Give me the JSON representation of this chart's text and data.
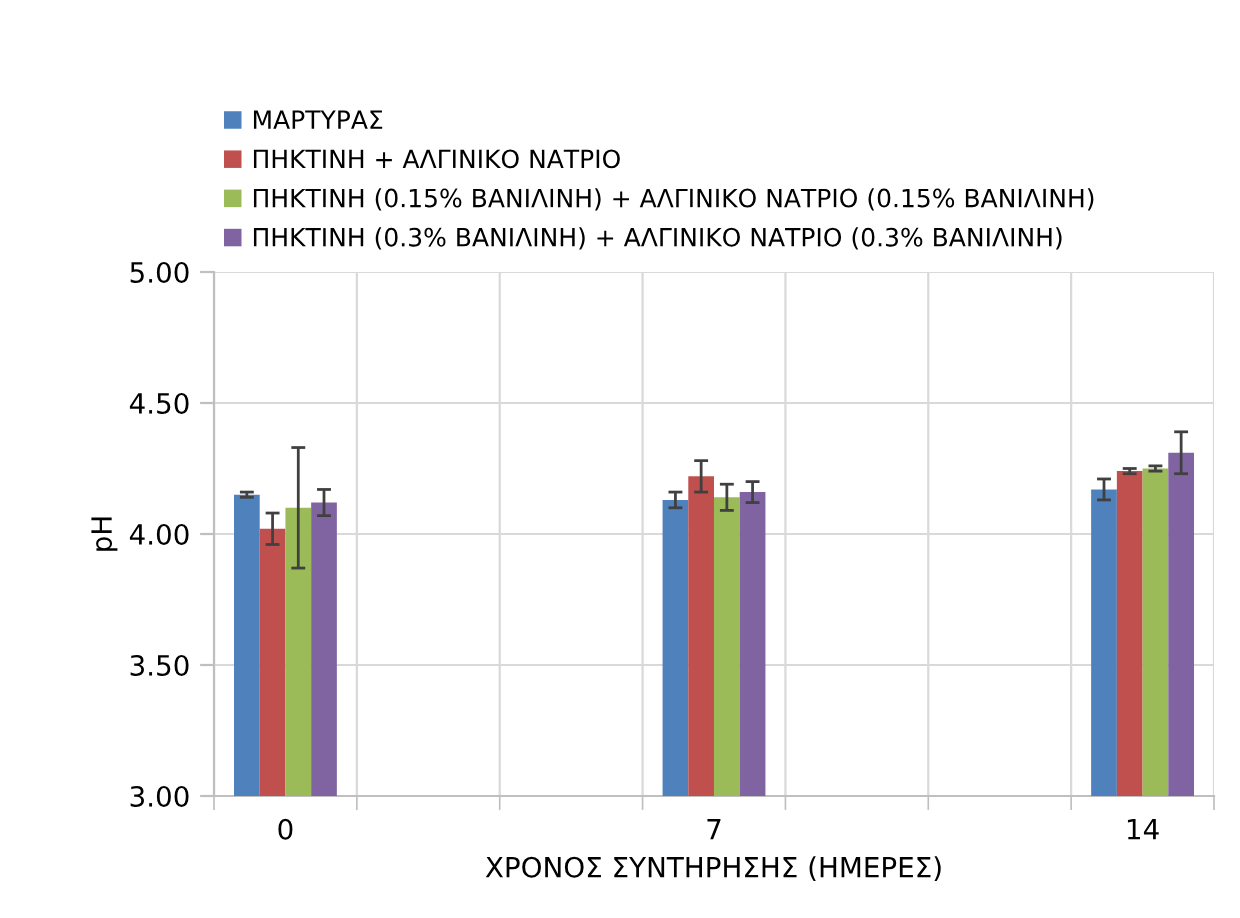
{
  "chart_data": {
    "type": "bar",
    "xlabel": "ΧΡΟΝΟΣ ΣΥΝΤΗΡΗΣΗΣ (ΗΜΕΡΕΣ)",
    "ylabel": "pH",
    "categories": [
      "0",
      null,
      null,
      "7",
      null,
      null,
      "14"
    ],
    "series": [
      {
        "name": "ΜΑΡΤΥΡΑΣ",
        "color": "#4f81bd",
        "values": [
          4.15,
          null,
          null,
          4.13,
          null,
          null,
          4.17
        ],
        "errors": [
          0.01,
          null,
          null,
          0.03,
          null,
          null,
          0.04
        ]
      },
      {
        "name": "ΠΗΚΤΙΝΗ + ΑΛΓΙΝΙΚΟ ΝΑΤΡΙΟ",
        "color": "#c0504d",
        "values": [
          4.02,
          null,
          null,
          4.22,
          null,
          null,
          4.24
        ],
        "errors": [
          0.06,
          null,
          null,
          0.06,
          null,
          null,
          0.01
        ]
      },
      {
        "name": "ΠΗΚΤΙΝΗ (0.15% ΒΑΝΙΛΙΝΗ) + ΑΛΓΙΝΙΚΟ ΝΑΤΡΙΟ (0.15% ΒΑΝΙΛΙΝΗ)",
        "color": "#9bbb59",
        "values": [
          4.1,
          null,
          null,
          4.14,
          null,
          null,
          4.25
        ],
        "errors": [
          0.23,
          null,
          null,
          0.05,
          null,
          null,
          0.01
        ]
      },
      {
        "name": "ΠΗΚΤΙΝΗ (0.3% ΒΑΝΙΛΙΝΗ) + ΑΛΓΙΝΙΚΟ ΝΑΤΡΙΟ (0.3% ΒΑΝΙΛΙΝΗ)",
        "color": "#8064a2",
        "values": [
          4.12,
          null,
          null,
          4.16,
          null,
          null,
          4.31
        ],
        "errors": [
          0.05,
          null,
          null,
          0.04,
          null,
          null,
          0.08
        ]
      }
    ],
    "ylim": [
      3,
      5
    ],
    "yticks": [
      {
        "value": 3,
        "label": "3.00"
      },
      {
        "value": 3.5,
        "label": "3.50"
      },
      {
        "value": 4,
        "label": "4.00"
      },
      {
        "value": 4.5,
        "label": "4.50"
      },
      {
        "value": 5,
        "label": "5.00"
      }
    ],
    "grid": true,
    "legend": "top left"
  }
}
